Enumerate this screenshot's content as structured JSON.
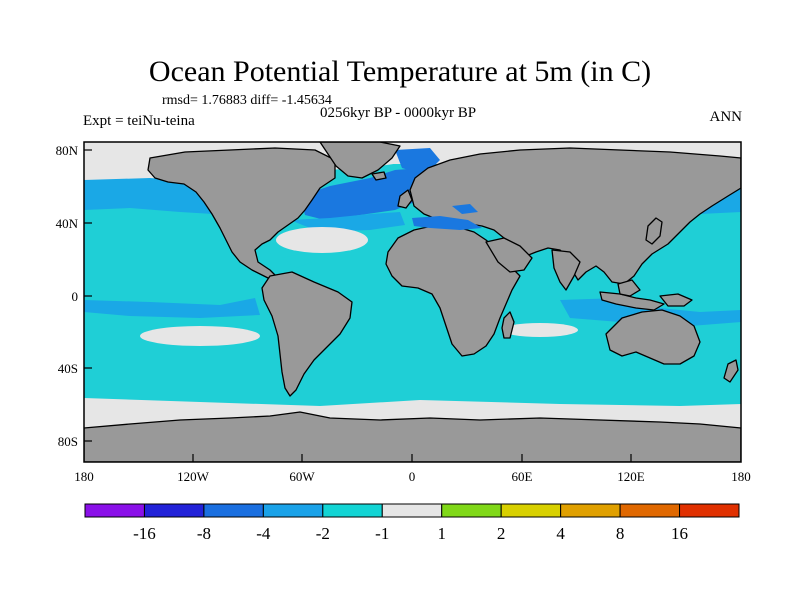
{
  "title": "Ocean Potential Temperature at 5m (in C)",
  "stats": "rmsd= 1.76883 diff= -1.45634",
  "period": "0256kyr BP - 0000kyr BP",
  "experiment": "Expt = teiNu-teina",
  "season": "ANN",
  "lat_ticks": [
    "80N",
    "40N",
    "0",
    "40S",
    "80S"
  ],
  "lon_ticks": [
    "180",
    "120W",
    "60W",
    "0",
    "60E",
    "120E",
    "180"
  ],
  "colorbar": {
    "colors": [
      "#8a10e8",
      "#2222d8",
      "#1a6fe0",
      "#1aa2e8",
      "#12d4d4",
      "#e6e6e6",
      "#80d818",
      "#d8d000",
      "#e0a000",
      "#e06800",
      "#e03000"
    ],
    "labels": [
      "-16",
      "-8",
      "-4",
      "-2",
      "-1",
      "1",
      "2",
      "4",
      "8",
      "16"
    ]
  },
  "map_colors": {
    "land": "#999999",
    "ocean_base": "#1fcfd6",
    "cool_light": "#1aa8e6",
    "cool_mid": "#1a78e0",
    "neutral": "#e6e6e6",
    "warm_small": "#80d818"
  }
}
